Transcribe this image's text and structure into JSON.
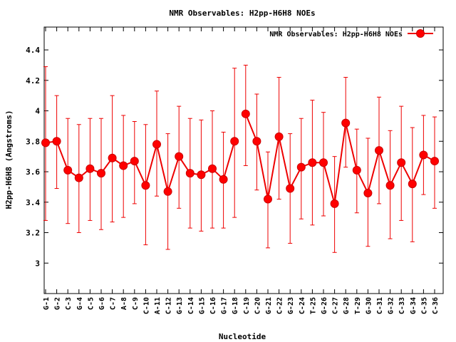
{
  "chart_data": {
    "type": "line",
    "title": "NMR Observables: H2pp-H6H8 NOEs",
    "xlabel": "Nucleotide",
    "ylabel": "H2pp-H6H8 (Angstroms)",
    "ylim": [
      2.8,
      4.55
    ],
    "yticks": [
      "3",
      "3.2",
      "3.4",
      "3.6",
      "3.8",
      "4",
      "4.2",
      "4.4"
    ],
    "grid": false,
    "legend_position": "top-right",
    "categories": [
      "G-1",
      "G-2",
      "C-3",
      "G-4",
      "C-5",
      "G-6",
      "C-7",
      "A-8",
      "C-9",
      "C-10",
      "A-11",
      "C-12",
      "G-13",
      "C-14",
      "G-15",
      "C-16",
      "G-17",
      "G-18",
      "C-19",
      "C-20",
      "G-21",
      "C-22",
      "G-23",
      "C-24",
      "T-25",
      "G-26",
      "C-27",
      "G-28",
      "T-29",
      "G-30",
      "C-31",
      "G-32",
      "C-33",
      "G-34",
      "C-35",
      "C-36"
    ],
    "series": [
      {
        "name": "NMR Observables: H2pp-H6H8 NOEs",
        "color": "#ff0000",
        "segments": [
          [
            0,
            17
          ],
          [
            18,
            35
          ]
        ],
        "values": [
          3.79,
          3.8,
          3.61,
          3.56,
          3.62,
          3.59,
          3.69,
          3.64,
          3.67,
          3.51,
          3.78,
          3.47,
          3.7,
          3.59,
          3.58,
          3.62,
          3.55,
          3.8,
          3.98,
          3.8,
          3.42,
          3.83,
          3.49,
          3.63,
          3.66,
          3.66,
          3.39,
          3.92,
          3.61,
          3.46,
          3.74,
          3.51,
          3.66,
          3.52,
          3.71,
          3.67
        ],
        "err_low": [
          3.28,
          3.49,
          3.26,
          3.2,
          3.28,
          3.22,
          3.27,
          3.3,
          3.39,
          3.12,
          3.44,
          3.09,
          3.36,
          3.23,
          3.21,
          3.23,
          3.23,
          3.3,
          3.64,
          3.48,
          3.1,
          3.42,
          3.13,
          3.29,
          3.25,
          3.31,
          3.07,
          3.63,
          3.33,
          3.11,
          3.39,
          3.16,
          3.28,
          3.14,
          3.45,
          3.36
        ],
        "err_high": [
          4.29,
          4.1,
          3.95,
          3.91,
          3.95,
          3.95,
          4.1,
          3.97,
          3.93,
          3.91,
          4.13,
          3.85,
          4.03,
          3.95,
          3.94,
          4.0,
          3.86,
          4.28,
          4.3,
          4.11,
          3.73,
          4.22,
          3.85,
          3.95,
          4.07,
          3.99,
          3.7,
          4.22,
          3.88,
          3.82,
          4.09,
          3.87,
          4.03,
          3.89,
          3.97,
          3.96
        ]
      }
    ]
  }
}
